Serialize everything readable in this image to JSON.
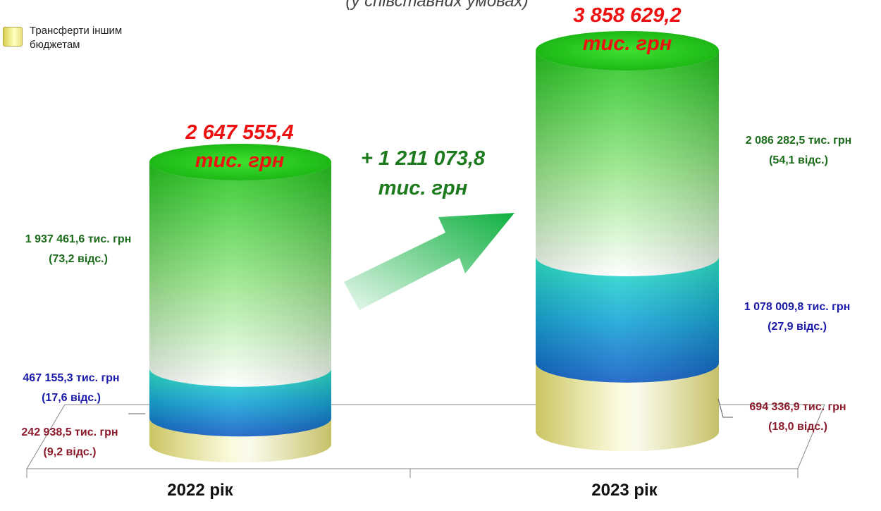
{
  "title": "(у співставних умовах)",
  "legend": {
    "label": "Трансферти іншим бюджетам"
  },
  "change": {
    "value": "+ 1 211 073,8",
    "unit": "тис. грн"
  },
  "colors": {
    "top": "#22cc22",
    "middle": "#1aa8d8",
    "bottom": "#f0f090",
    "total_text": "#ee1111"
  },
  "chart_data": {
    "type": "bar",
    "stacked": true,
    "style": "3d-cylinder",
    "categories": [
      "2022 рік",
      "2023 рік"
    ],
    "unit": "тис. грн",
    "series": [
      {
        "values": [
          242938.5,
          694336.9
        ],
        "percent": [
          9.2,
          18.0
        ]
      },
      {
        "values": [
          467155.3,
          1078009.8
        ],
        "percent": [
          17.6,
          27.9
        ]
      },
      {
        "values": [
          1937461.6,
          2086282.5
        ],
        "percent": [
          73.2,
          54.1
        ]
      }
    ],
    "totals": [
      2647555.4,
      3858629.2
    ],
    "bar_labels": [
      {
        "total": "2 647 555,4",
        "segments": [
          {
            "value": "242 938,5 тис. грн",
            "pct": "(9,2 відс.)"
          },
          {
            "value": "467 155,3 тис. грн",
            "pct": "(17,6 відс.)"
          },
          {
            "value": "1 937 461,6 тис. грн",
            "pct": "(73,2 відс.)"
          }
        ]
      },
      {
        "total": "3 858 629,2",
        "segments": [
          {
            "value": "694 336,9 тис. грн",
            "pct": "(18,0 відс.)"
          },
          {
            "value": "1 078 009,8 тис. грн",
            "pct": "(27,9 відс.)"
          },
          {
            "value": "2 086 282,5 тис. грн",
            "pct": "(54,1 відс.)"
          }
        ]
      }
    ],
    "total_unit": "тис. грн",
    "legend_position": "top-left"
  }
}
